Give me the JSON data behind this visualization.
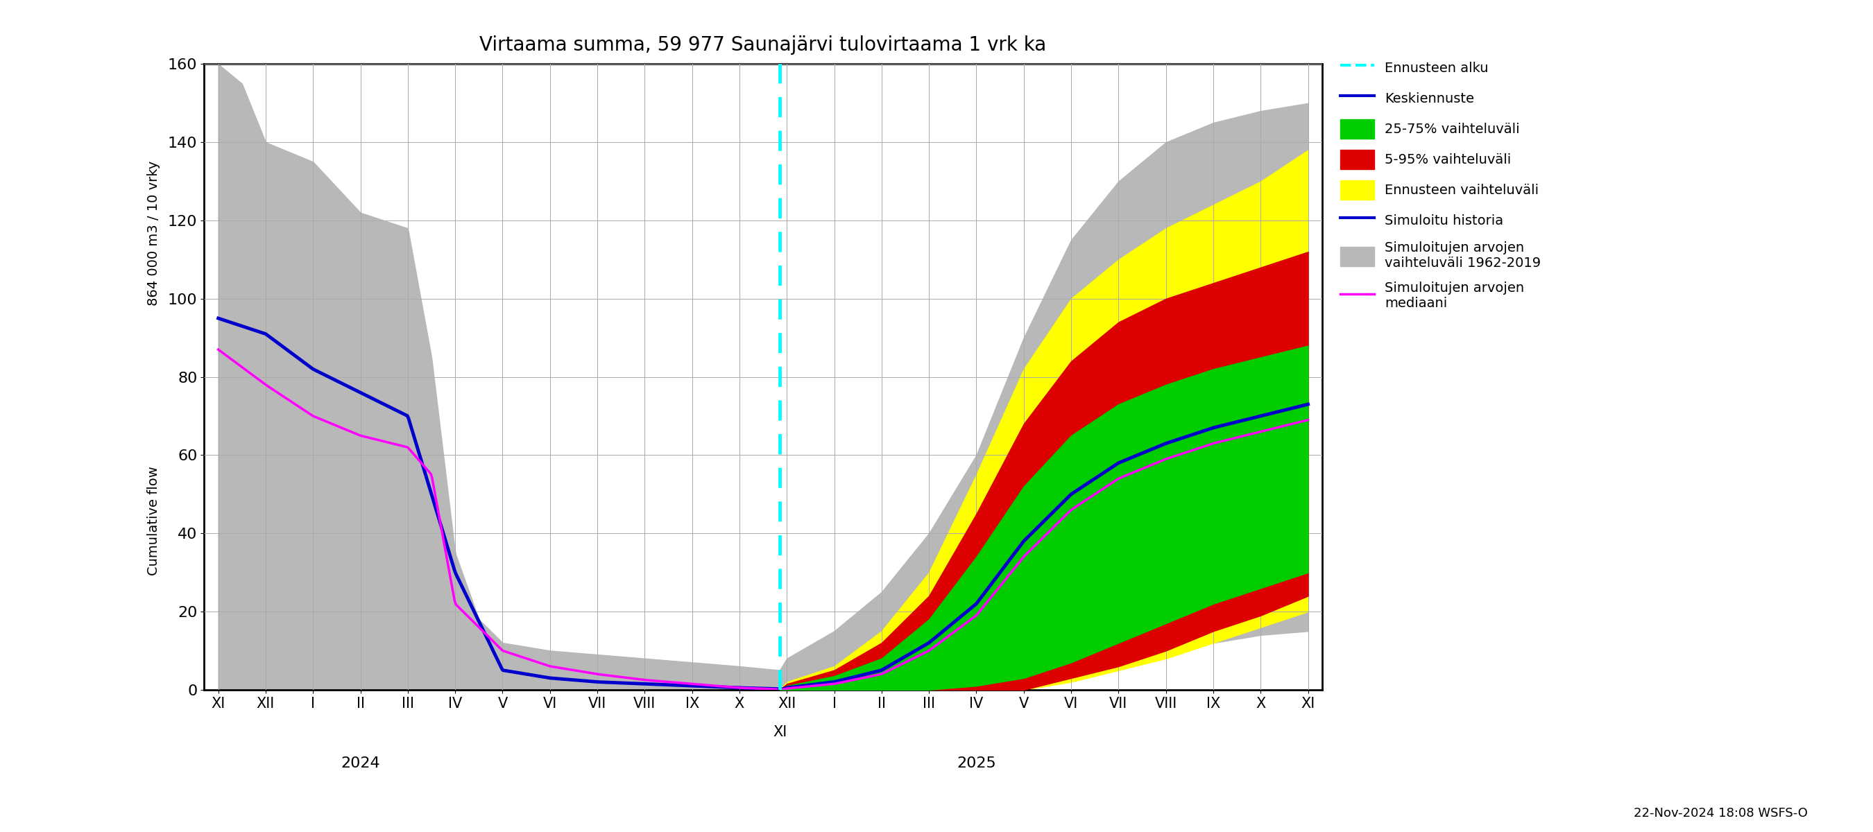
{
  "title": "Virtaama summa, 59 977 Saunajärvi tulovirtaama 1 vrk ka",
  "ylabel_top": "864 000 m3 / 10 vrky",
  "ylabel_bottom": "Cumulative flow",
  "ylim": [
    0,
    160
  ],
  "yticks": [
    0,
    20,
    40,
    60,
    80,
    100,
    120,
    140,
    160
  ],
  "footer": "22-Nov-2024 18:08 WSFS-O",
  "background_color": "#ffffff",
  "grid_color": "#aaaaaa",
  "colors": {
    "gray": "#b8b8b8",
    "yellow": "#ffff00",
    "red": "#dd0000",
    "green": "#00cc00",
    "blue": "#0000cc",
    "magenta": "#ff00ff",
    "cyan": "#00ffff"
  }
}
